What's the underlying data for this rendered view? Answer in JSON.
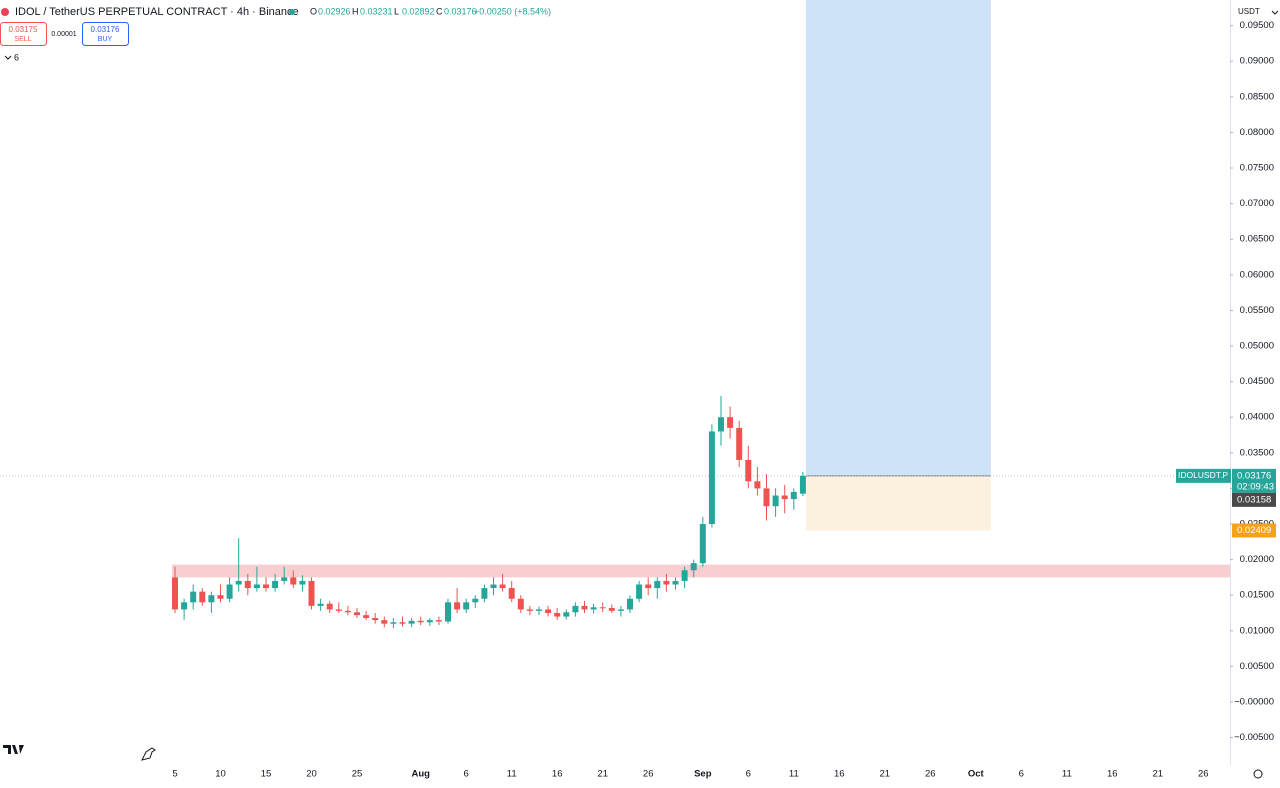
{
  "chart_data": {
    "type": "candlestick",
    "title": "IDOL / TetherUS PERPETUAL CONTRACT · 4h · Binance",
    "ohlc_legend": [
      {
        "label": "O",
        "value": 0.02926
      },
      {
        "label": "H",
        "value": 0.03231
      },
      {
        "label": "L",
        "value": 0.02892
      },
      {
        "label": "C",
        "value": 0.03176
      }
    ],
    "change": "+0.00250 (+8.54%)",
    "sell": {
      "price": 0.03175,
      "label": "SELL"
    },
    "spread": 1e-05,
    "buy": {
      "price": 0.03176,
      "label": "BUY"
    },
    "indicator_count": 6,
    "currency": "USDT",
    "symbol": "IDOLUSDT.P",
    "last_price": 0.03176,
    "countdown": "02:09:43",
    "marked_price": 0.03158,
    "position": {
      "entry": 0.03176,
      "stop": 0.02409,
      "target": 0.1
    },
    "zone": {
      "low": 0.0175,
      "high": 0.0193
    },
    "up_color": "#26a69a",
    "down_color": "#ef5350",
    "grid": false,
    "categories": [
      "5",
      null,
      null,
      null,
      null,
      "10",
      null,
      null,
      null,
      null,
      "15",
      null,
      null,
      null,
      null,
      "20",
      null,
      null,
      null,
      null,
      "25",
      null,
      null,
      null,
      null,
      null,
      null,
      "Aug",
      null,
      null,
      null,
      null,
      "6",
      null,
      null,
      null,
      null,
      "11",
      null,
      null,
      null,
      null,
      "16",
      null,
      null,
      null,
      null,
      "21",
      null,
      null,
      null,
      null,
      "26",
      null,
      null,
      null,
      null,
      null,
      "Sep",
      null,
      null,
      null,
      null,
      "6",
      null,
      null,
      null,
      null,
      "11",
      null,
      null,
      null,
      null,
      "16",
      null,
      null,
      null,
      null,
      "21",
      null,
      null,
      null,
      null,
      "26",
      null,
      null,
      null,
      null,
      "Oct",
      null,
      null,
      null,
      null,
      "6",
      null,
      null,
      null,
      null,
      "11",
      null,
      null,
      null,
      null,
      "16",
      null,
      null,
      null,
      null,
      "21",
      null,
      null,
      null,
      null,
      "26"
    ],
    "open": [
      0.0175,
      0.013,
      0.014,
      0.0155,
      0.014,
      0.015,
      0.0145,
      0.0165,
      0.017,
      0.016,
      0.0165,
      0.016,
      0.017,
      0.0175,
      0.0165,
      0.017,
      0.0135,
      0.0138,
      0.013,
      0.0128,
      0.0126,
      0.0122,
      0.0118,
      0.0115,
      0.011,
      0.0112,
      0.011,
      0.0114,
      0.0112,
      0.0115,
      0.0113,
      0.014,
      0.013,
      0.014,
      0.0145,
      0.016,
      0.0165,
      0.016,
      0.0145,
      0.013,
      0.0128,
      0.013,
      0.0125,
      0.012,
      0.0126,
      0.0135,
      0.013,
      0.0133,
      0.0132,
      0.0128,
      0.013,
      0.0145,
      0.0165,
      0.016,
      0.017,
      0.0165,
      0.017,
      0.0185,
      0.0195,
      0.025,
      0.038,
      0.04,
      0.0385,
      0.034,
      0.031,
      0.03,
      0.0275,
      0.029,
      0.0285,
      0.02926,
      null,
      null,
      null,
      null,
      null,
      null,
      null,
      null,
      null,
      null,
      null,
      null,
      null,
      null,
      null,
      null,
      null,
      null,
      null,
      null,
      null,
      null,
      null,
      null,
      null,
      null,
      null,
      null,
      null,
      null,
      null,
      null,
      null,
      null,
      null,
      null,
      null,
      null,
      null,
      null,
      null,
      null,
      null,
      null
    ],
    "high": [
      0.019,
      0.0145,
      0.0165,
      0.016,
      0.0155,
      0.0165,
      0.0175,
      0.023,
      0.018,
      0.019,
      0.0175,
      0.018,
      0.019,
      0.0185,
      0.0178,
      0.0175,
      0.0145,
      0.0142,
      0.014,
      0.0135,
      0.0132,
      0.0128,
      0.0125,
      0.012,
      0.0118,
      0.012,
      0.0118,
      0.012,
      0.0118,
      0.012,
      0.0145,
      0.016,
      0.0145,
      0.015,
      0.0165,
      0.0175,
      0.018,
      0.017,
      0.015,
      0.0135,
      0.0134,
      0.0135,
      0.0132,
      0.013,
      0.014,
      0.0142,
      0.0138,
      0.014,
      0.0137,
      0.0135,
      0.015,
      0.017,
      0.0175,
      0.0175,
      0.018,
      0.0175,
      0.019,
      0.02,
      0.026,
      0.039,
      0.043,
      0.0415,
      0.0395,
      0.036,
      0.033,
      0.032,
      0.03,
      0.0305,
      0.03,
      0.03231,
      null,
      null,
      null,
      null,
      null,
      null,
      null,
      null,
      null,
      null,
      null,
      null,
      null,
      null,
      null,
      null,
      null,
      null,
      null,
      null,
      null,
      null,
      null,
      null,
      null,
      null,
      null,
      null,
      null,
      null,
      null,
      null,
      null,
      null,
      null,
      null,
      null,
      null,
      null,
      null,
      null,
      null,
      null,
      null
    ],
    "low": [
      0.0125,
      0.0115,
      0.013,
      0.0135,
      0.0125,
      0.014,
      0.014,
      0.0155,
      0.015,
      0.0155,
      0.0155,
      0.0155,
      0.0165,
      0.016,
      0.0155,
      0.013,
      0.0128,
      0.0125,
      0.0125,
      0.0122,
      0.0118,
      0.0115,
      0.011,
      0.0105,
      0.0104,
      0.0106,
      0.0105,
      0.0108,
      0.0107,
      0.0108,
      0.011,
      0.0125,
      0.0125,
      0.0132,
      0.014,
      0.015,
      0.0155,
      0.014,
      0.0125,
      0.0122,
      0.0122,
      0.012,
      0.0115,
      0.0116,
      0.012,
      0.0125,
      0.0124,
      0.0126,
      0.0125,
      0.012,
      0.0125,
      0.014,
      0.015,
      0.0145,
      0.0155,
      0.0158,
      0.016,
      0.0175,
      0.019,
      0.0245,
      0.036,
      0.037,
      0.033,
      0.03,
      0.029,
      0.0255,
      0.026,
      0.0265,
      0.027,
      0.02892,
      null,
      null,
      null,
      null,
      null,
      null,
      null,
      null,
      null,
      null,
      null,
      null,
      null,
      null,
      null,
      null,
      null,
      null,
      null,
      null,
      null,
      null,
      null,
      null,
      null,
      null,
      null,
      null,
      null,
      null,
      null,
      null,
      null,
      null,
      null,
      null,
      null,
      null,
      null,
      null,
      null,
      null,
      null,
      null
    ],
    "close": [
      0.013,
      0.014,
      0.0155,
      0.014,
      0.015,
      0.0145,
      0.0165,
      0.017,
      0.016,
      0.0165,
      0.016,
      0.017,
      0.0175,
      0.0165,
      0.017,
      0.0135,
      0.0138,
      0.013,
      0.0128,
      0.0126,
      0.0122,
      0.0118,
      0.0115,
      0.011,
      0.0112,
      0.011,
      0.0114,
      0.0112,
      0.0115,
      0.0113,
      0.014,
      0.013,
      0.014,
      0.0145,
      0.016,
      0.0165,
      0.016,
      0.0145,
      0.013,
      0.0128,
      0.013,
      0.0125,
      0.012,
      0.0126,
      0.0135,
      0.013,
      0.0133,
      0.0132,
      0.0128,
      0.013,
      0.0145,
      0.0165,
      0.016,
      0.017,
      0.0165,
      0.017,
      0.0185,
      0.0195,
      0.025,
      0.038,
      0.04,
      0.0385,
      0.034,
      0.031,
      0.03,
      0.0275,
      0.029,
      0.0285,
      0.0295,
      0.03176,
      null,
      null,
      null,
      null,
      null,
      null,
      null,
      null,
      null,
      null,
      null,
      null,
      null,
      null,
      null,
      null,
      null,
      null,
      null,
      null,
      null,
      null,
      null,
      null,
      null,
      null,
      null,
      null,
      null,
      null,
      null,
      null,
      null,
      null,
      null,
      null,
      null,
      null,
      null,
      null,
      null,
      null,
      null,
      null
    ],
    "ylim": [
      -0.00885,
      0.0986
    ],
    "yticks": [
      {
        "value": -0.005,
        "label": "−0.00500"
      },
      {
        "value": 0,
        "label": "−0.00000"
      },
      {
        "value": 0.005,
        "label": "0.00500"
      },
      {
        "value": 0.01,
        "label": "0.01000"
      },
      {
        "value": 0.015,
        "label": "0.01500"
      },
      {
        "value": 0.02,
        "label": "0.02000"
      },
      {
        "value": 0.025,
        "label": "0.02500"
      },
      {
        "value": 0.03,
        "label": "0.03000"
      },
      {
        "value": 0.035,
        "label": "0.03500"
      },
      {
        "value": 0.04,
        "label": "0.04000"
      },
      {
        "value": 0.045,
        "label": "0.04500"
      },
      {
        "value": 0.05,
        "label": "0.05000"
      },
      {
        "value": 0.055,
        "label": "0.05500"
      },
      {
        "value": 0.06,
        "label": "0.06000"
      },
      {
        "value": 0.065,
        "label": "0.06500"
      },
      {
        "value": 0.07,
        "label": "0.07000"
      },
      {
        "value": 0.075,
        "label": "0.07500"
      },
      {
        "value": 0.08,
        "label": "0.08000"
      },
      {
        "value": 0.085,
        "label": "0.08500"
      },
      {
        "value": 0.09,
        "label": "0.09000"
      },
      {
        "value": 0.095,
        "label": "0.09500"
      }
    ]
  }
}
